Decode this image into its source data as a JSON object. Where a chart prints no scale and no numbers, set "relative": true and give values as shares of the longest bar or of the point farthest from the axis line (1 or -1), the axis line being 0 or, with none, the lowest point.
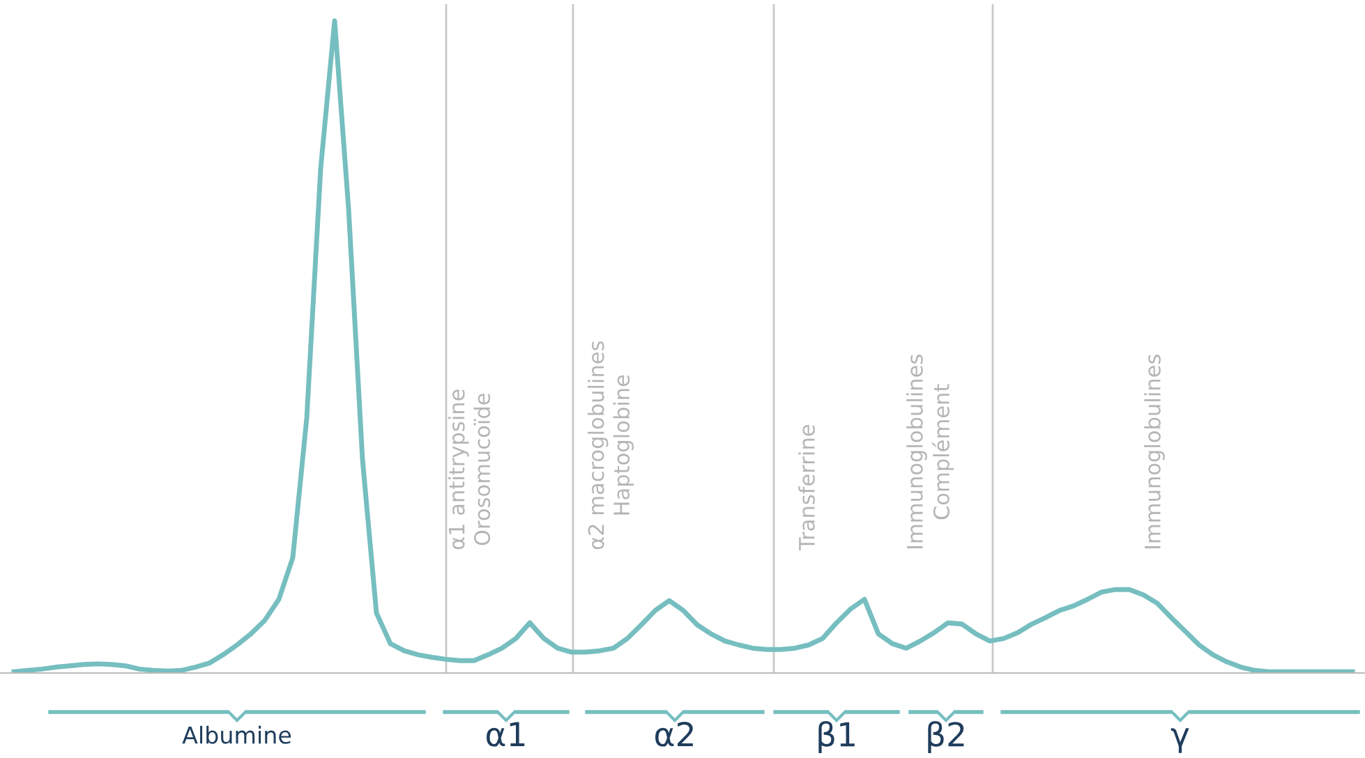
{
  "chart_data": {
    "type": "line",
    "relative": true,
    "tick_labels": false,
    "grid": false,
    "legend": false,
    "marker": "none",
    "line_style": "solid",
    "categories": [
      null,
      null,
      null,
      null,
      null,
      null,
      null,
      null,
      null,
      null,
      null,
      null,
      null,
      null,
      null,
      null,
      null,
      null,
      null,
      null,
      null,
      null,
      null,
      null,
      null,
      null,
      null,
      null,
      null,
      null,
      null,
      null,
      null,
      null,
      null,
      null,
      null,
      null,
      null,
      null,
      null,
      null,
      null,
      null,
      null,
      null,
      null,
      null,
      null,
      null,
      null,
      null,
      null,
      null,
      null,
      null,
      null,
      null,
      null,
      null,
      null,
      null,
      null,
      null,
      null,
      null,
      null,
      null,
      null,
      null,
      null,
      null,
      null,
      null,
      null,
      null,
      null,
      null,
      null,
      null,
      null,
      null,
      null,
      null,
      null,
      null,
      null,
      null,
      null,
      null,
      null,
      null,
      null,
      null,
      null,
      null,
      null
    ],
    "series": [
      {
        "color": "#76bec0",
        "values": [
          0.002,
          0.004,
          0.006,
          0.009,
          0.011,
          0.013,
          0.014,
          0.013,
          0.011,
          0.006,
          0.004,
          0.003,
          0.004,
          0.009,
          0.015,
          0.028,
          0.043,
          0.06,
          0.081,
          0.113,
          0.177,
          0.391,
          0.774,
          1.0,
          0.712,
          0.327,
          0.092,
          0.045,
          0.034,
          0.028,
          0.024,
          0.021,
          0.019,
          0.019,
          0.028,
          0.038,
          0.053,
          0.077,
          0.053,
          0.038,
          0.032,
          0.032,
          0.034,
          0.038,
          0.053,
          0.074,
          0.096,
          0.111,
          0.096,
          0.074,
          0.06,
          0.049,
          0.043,
          0.038,
          0.036,
          0.036,
          0.038,
          0.043,
          0.053,
          0.077,
          0.098,
          0.113,
          0.06,
          0.045,
          0.038,
          0.049,
          0.062,
          0.077,
          0.075,
          0.06,
          0.049,
          0.053,
          0.062,
          0.075,
          0.085,
          0.096,
          0.103,
          0.113,
          0.124,
          0.128,
          0.128,
          0.12,
          0.107,
          0.085,
          0.064,
          0.043,
          0.028,
          0.017,
          0.009,
          0.004,
          0.002,
          0.002,
          0.002,
          0.002,
          0.002,
          0.002,
          0.002
        ]
      }
    ],
    "annotations": [
      "Albumine",
      "α1",
      "α2",
      "β1",
      "β2",
      "γ",
      "α1 antitrypsine\nOrosomucoïde",
      "α2 macroglobulines\nHaptoglobine",
      "Transferrine",
      "Immunoglobulines\nComplément",
      "Immunoglobulines"
    ]
  }
}
